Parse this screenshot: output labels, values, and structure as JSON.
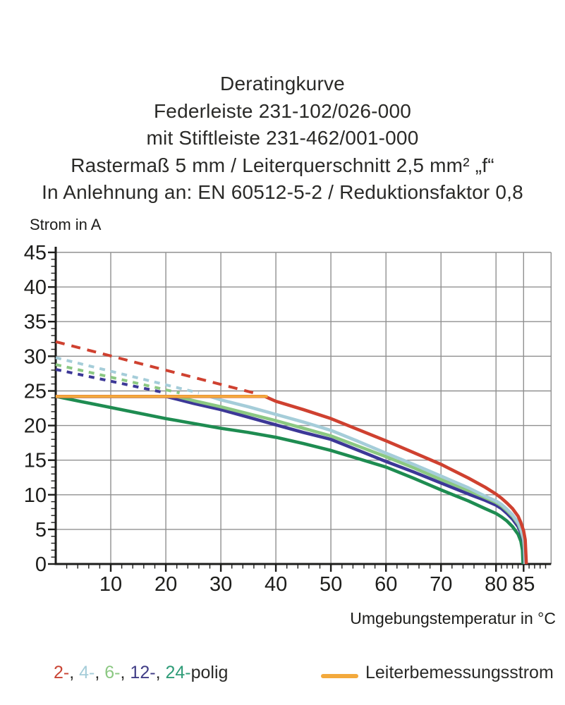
{
  "title": {
    "lines": [
      "Deratingkurve",
      "Federleiste 231-102/026-000",
      "mit Stiftleiste 231-462/001-000",
      "Rastermaß 5 mm / Leiterquerschnitt 2,5 mm² „f“",
      "In Anlehnung an: EN 60512-5-2 / Reduktionsfaktor 0,8"
    ]
  },
  "chart_data": {
    "type": "line",
    "title": "Deratingkurve",
    "xlabel": "Umgebungstemperatur in °C",
    "ylabel": "Strom in A",
    "xlim": [
      0,
      90
    ],
    "ylim": [
      0,
      45
    ],
    "grid": true,
    "x_gridlines": [
      10,
      20,
      30,
      40,
      50,
      60,
      70,
      80,
      85,
      90
    ],
    "y_gridlines": [
      5,
      10,
      15,
      20,
      25,
      30,
      35,
      40,
      45
    ],
    "x_major_ticks": [
      10,
      20,
      30,
      40,
      50,
      60,
      70,
      80,
      85
    ],
    "x_tick_labels": [
      "10",
      "20",
      "30",
      "40",
      "50",
      "60",
      "70",
      "80",
      "85"
    ],
    "y_major_ticks": [
      0,
      5,
      10,
      15,
      20,
      25,
      30,
      35,
      40,
      45
    ],
    "y_tick_labels": [
      "0",
      "5",
      "10",
      "15",
      "20",
      "25",
      "30",
      "35",
      "40",
      "45"
    ],
    "colors": {
      "grid": "#909090",
      "axis": "#1d1d1b",
      "rated_current": "#f3a93c"
    },
    "series": [
      {
        "name": "2-polig-dashed",
        "color": "#cf4130",
        "style": "dashed",
        "dash": "13 10",
        "points": [
          [
            0,
            32.1
          ],
          [
            36,
            24.7
          ]
        ]
      },
      {
        "name": "4-polig-dashed",
        "color": "#a5cdd9",
        "style": "dashed",
        "dash": "8 8",
        "points": [
          [
            0,
            29.8
          ],
          [
            26,
            24.7
          ]
        ]
      },
      {
        "name": "6-polig-dashed",
        "color": "#8bc882",
        "style": "dashed",
        "dash": "8 8",
        "points": [
          [
            0,
            28.8
          ],
          [
            22.5,
            24.7
          ]
        ]
      },
      {
        "name": "12-polig-dashed",
        "color": "#3c3897",
        "style": "dashed",
        "dash": "8 8",
        "points": [
          [
            0,
            28.1
          ],
          [
            20,
            24.7
          ]
        ]
      },
      {
        "name": "24-polig",
        "color": "#1e8c51",
        "style": "solid",
        "points": [
          [
            0,
            24.2
          ],
          [
            5,
            23.4
          ],
          [
            10,
            22.6
          ],
          [
            15,
            21.8
          ],
          [
            20,
            21.0
          ],
          [
            25,
            20.3
          ],
          [
            30,
            19.6
          ],
          [
            35,
            19.0
          ],
          [
            40,
            18.3
          ],
          [
            45,
            17.4
          ],
          [
            50,
            16.4
          ],
          [
            55,
            15.2
          ],
          [
            60,
            14.0
          ],
          [
            65,
            12.4
          ],
          [
            70,
            10.7
          ],
          [
            75,
            9.1
          ],
          [
            78,
            8.0
          ],
          [
            80,
            7.3
          ],
          [
            81,
            6.8
          ],
          [
            82,
            6.2
          ],
          [
            83,
            5.4
          ],
          [
            84,
            4.3
          ],
          [
            84.5,
            3.3
          ],
          [
            84.8,
            2.0
          ],
          [
            84.9,
            0
          ]
        ]
      },
      {
        "name": "12-polig",
        "color": "#3c3897",
        "style": "solid",
        "points": [
          [
            0,
            24.2
          ],
          [
            20,
            24.2
          ],
          [
            25,
            23.2
          ],
          [
            30,
            22.3
          ],
          [
            35,
            21.2
          ],
          [
            40,
            20.1
          ],
          [
            45,
            19.0
          ],
          [
            50,
            18.0
          ],
          [
            55,
            16.4
          ],
          [
            60,
            14.8
          ],
          [
            65,
            13.3
          ],
          [
            70,
            11.7
          ],
          [
            75,
            10.1
          ],
          [
            78,
            9.2
          ],
          [
            80,
            8.5
          ],
          [
            81,
            8.0
          ],
          [
            82,
            7.3
          ],
          [
            83,
            6.5
          ],
          [
            84,
            5.4
          ],
          [
            84.5,
            4.5
          ],
          [
            85,
            3.2
          ],
          [
            85.1,
            2.0
          ],
          [
            85.2,
            0
          ]
        ]
      },
      {
        "name": "6-polig",
        "color": "#8bc882",
        "style": "solid",
        "points": [
          [
            0,
            24.2
          ],
          [
            22,
            24.2
          ],
          [
            25,
            23.6
          ],
          [
            30,
            22.7
          ],
          [
            35,
            21.7
          ],
          [
            40,
            20.7
          ],
          [
            45,
            19.6
          ],
          [
            50,
            18.5
          ],
          [
            55,
            17.0
          ],
          [
            60,
            15.5
          ],
          [
            65,
            13.9
          ],
          [
            70,
            12.2
          ],
          [
            75,
            10.6
          ],
          [
            78,
            9.6
          ],
          [
            80,
            8.9
          ],
          [
            81,
            8.4
          ],
          [
            82,
            7.7
          ],
          [
            83,
            6.9
          ],
          [
            84,
            5.8
          ],
          [
            84.5,
            4.9
          ],
          [
            85,
            3.5
          ],
          [
            85.15,
            2.2
          ],
          [
            85.25,
            0
          ]
        ]
      },
      {
        "name": "4-polig",
        "color": "#a5cdd9",
        "style": "solid",
        "points": [
          [
            0,
            24.2
          ],
          [
            28,
            24.2
          ],
          [
            30,
            23.7
          ],
          [
            35,
            22.7
          ],
          [
            40,
            21.6
          ],
          [
            45,
            20.5
          ],
          [
            50,
            19.3
          ],
          [
            55,
            17.7
          ],
          [
            60,
            16.0
          ],
          [
            65,
            14.4
          ],
          [
            70,
            12.7
          ],
          [
            75,
            11.0
          ],
          [
            78,
            9.8
          ],
          [
            80,
            9.1
          ],
          [
            81,
            8.6
          ],
          [
            82,
            7.9
          ],
          [
            83,
            7.1
          ],
          [
            84,
            6.0
          ],
          [
            84.5,
            5.1
          ],
          [
            85,
            3.8
          ],
          [
            85.2,
            2.5
          ],
          [
            85.3,
            0
          ]
        ]
      },
      {
        "name": "2-polig",
        "color": "#cf4130",
        "style": "solid",
        "points": [
          [
            0,
            24.2
          ],
          [
            38,
            24.2
          ],
          [
            40,
            23.5
          ],
          [
            45,
            22.3
          ],
          [
            50,
            21.0
          ],
          [
            55,
            19.4
          ],
          [
            60,
            17.8
          ],
          [
            65,
            16.1
          ],
          [
            70,
            14.4
          ],
          [
            75,
            12.4
          ],
          [
            78,
            11.1
          ],
          [
            80,
            10.1
          ],
          [
            81,
            9.5
          ],
          [
            82,
            8.8
          ],
          [
            83,
            8.0
          ],
          [
            84,
            6.9
          ],
          [
            84.5,
            6.0
          ],
          [
            85,
            4.8
          ],
          [
            85.3,
            3.5
          ],
          [
            85.5,
            0
          ]
        ]
      },
      {
        "name": "Leiterbemessungsstrom",
        "color": "#f3a93c",
        "style": "solid",
        "points": [
          [
            0,
            24.2
          ],
          [
            38.5,
            24.2
          ]
        ]
      }
    ]
  },
  "legend": {
    "items": [
      {
        "label": "2-",
        "color": "#c94535"
      },
      {
        "label": "4-",
        "color": "#a5cdd9"
      },
      {
        "label": "6-",
        "color": "#8bc882"
      },
      {
        "label": "12-",
        "color": "#403d86"
      },
      {
        "label": "24-",
        "color": "#2f9c78"
      }
    ],
    "separator": ", ",
    "suffix": "polig",
    "rated": {
      "label": "Leiterbemessungsstrom",
      "color": "#f3a93c"
    }
  }
}
